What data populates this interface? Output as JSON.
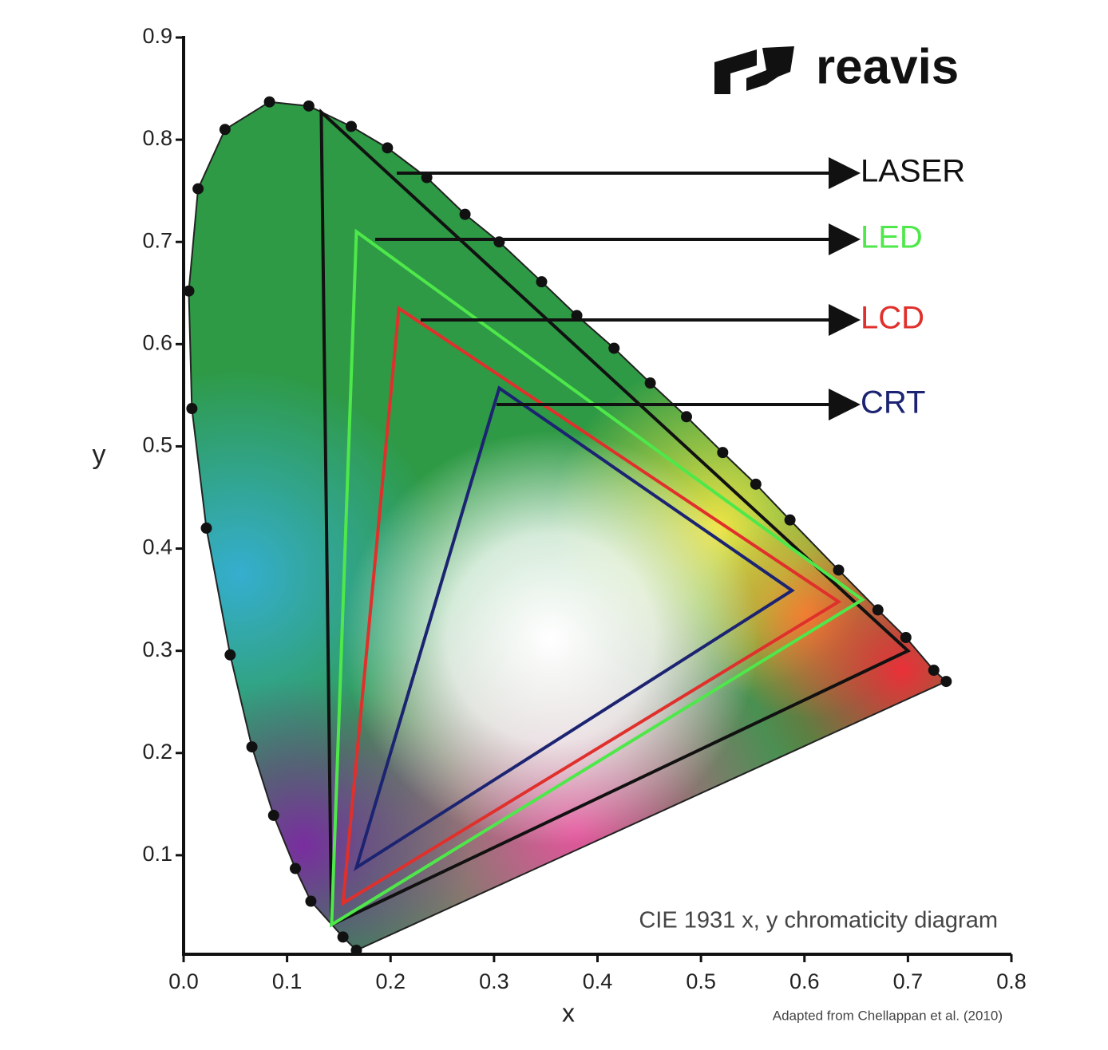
{
  "chart_data": {
    "type": "gamut",
    "title": "CIE 1931 x, y chromaticity diagram",
    "source": "Adapted from Chellappan et al. (2010)",
    "logo": "reavis",
    "xlabel": "x",
    "ylabel": "y",
    "xlim": [
      0,
      0.8
    ],
    "ylim": [
      0,
      0.9
    ],
    "xticks": [
      {
        "value": 0,
        "label": "0.0"
      },
      0.1,
      0.2,
      0.3,
      0.4,
      0.5,
      0.6,
      0.7,
      0.8
    ],
    "yticks": [
      0.1,
      0.2,
      0.3,
      0.4,
      0.5,
      0.6,
      0.7,
      0.8,
      0.9
    ],
    "locus": {
      "x": [
        0.167,
        0.154,
        0.123,
        0.108,
        0.087,
        0.066,
        0.045,
        0.022,
        0.008,
        0.005,
        0.014,
        0.04,
        0.083,
        0.121,
        0.162,
        0.197,
        0.235,
        0.272,
        0.305,
        0.346,
        0.38,
        0.416,
        0.451,
        0.486,
        0.521,
        0.553,
        0.586,
        0.633,
        0.671,
        0.698,
        0.725,
        0.737
      ],
      "y": [
        0.007,
        0.02,
        0.055,
        0.087,
        0.139,
        0.206,
        0.296,
        0.42,
        0.537,
        0.652,
        0.752,
        0.81,
        0.837,
        0.833,
        0.813,
        0.792,
        0.763,
        0.727,
        0.7,
        0.661,
        0.628,
        0.596,
        0.562,
        0.529,
        0.494,
        0.463,
        0.428,
        0.379,
        0.34,
        0.313,
        0.281,
        0.27
      ]
    },
    "series": [
      {
        "name": "LASER",
        "color": "#111111",
        "x": [
          0.133,
          0.7,
          0.143
        ],
        "y": [
          0.827,
          0.3,
          0.032
        ]
      },
      {
        "name": "LED",
        "color": "#4ee84a",
        "x": [
          0.167,
          0.656,
          0.143
        ],
        "y": [
          0.71,
          0.35,
          0.032
        ]
      },
      {
        "name": "LCD",
        "color": "#e0302c",
        "x": [
          0.208,
          0.633,
          0.154
        ],
        "y": [
          0.635,
          0.348,
          0.053
        ]
      },
      {
        "name": "CRT",
        "color": "#1c2472",
        "x": [
          0.305,
          0.588,
          0.167
        ],
        "y": [
          0.557,
          0.359,
          0.088
        ]
      }
    ]
  }
}
